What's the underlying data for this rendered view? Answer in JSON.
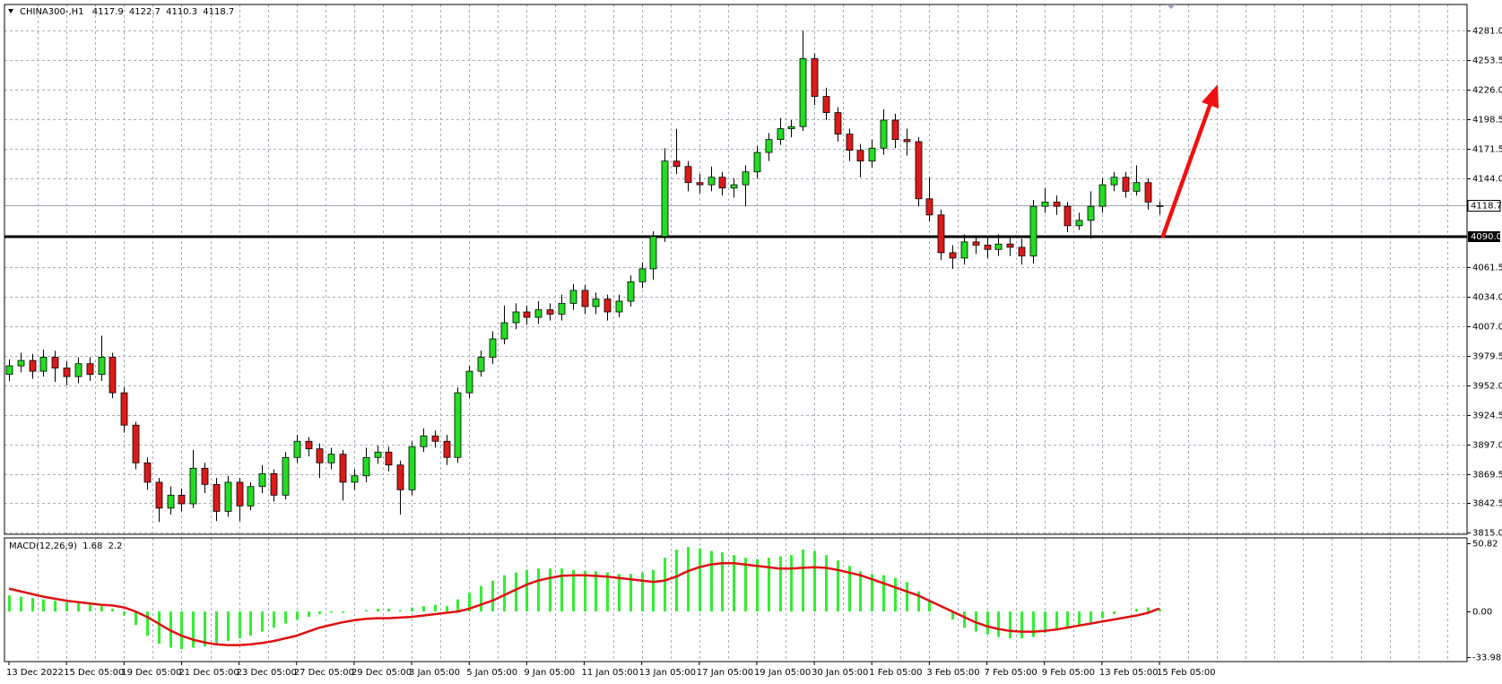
{
  "chart_data": [
    {
      "type": "candlestick",
      "title": "CHINA300-,H1",
      "categories": [
        "13 Dec 2022",
        null,
        null,
        null,
        null,
        "15 Dec 05:00",
        null,
        null,
        null,
        null,
        "19 Dec 05:00",
        null,
        null,
        null,
        null,
        "21 Dec 05:00",
        null,
        null,
        null,
        null,
        "23 Dec 05:00",
        null,
        null,
        null,
        null,
        "27 Dec 05:00",
        null,
        null,
        null,
        null,
        "29 Dec 05:00",
        null,
        null,
        null,
        null,
        "3 Jan 05:00",
        null,
        null,
        null,
        null,
        "5 Jan 05:00",
        null,
        null,
        null,
        null,
        "9 Jan 05:00",
        null,
        null,
        null,
        null,
        "11 Jan 05:00",
        null,
        null,
        null,
        null,
        "13 Jan 05:00",
        null,
        null,
        null,
        null,
        "17 Jan 05:00",
        null,
        null,
        null,
        null,
        "19 Jan 05:00",
        null,
        null,
        null,
        null,
        "30 Jan 05:00",
        null,
        null,
        null,
        null,
        "1 Feb 05:00",
        null,
        null,
        null,
        null,
        "3 Feb 05:00",
        null,
        null,
        null,
        null,
        "7 Feb 05:00",
        null,
        null,
        null,
        null,
        "9 Feb 05:00",
        null,
        null,
        null,
        null,
        "13 Feb 05:00",
        null,
        null,
        null,
        null,
        "15 Feb 05:00"
      ],
      "open": [
        3962,
        3970,
        3975,
        3965,
        3978,
        3968,
        3960,
        3972,
        3962,
        3978,
        3945,
        3915,
        3880,
        3862,
        3838,
        3850,
        3842,
        3875,
        3860,
        3835,
        3862,
        3840,
        3858,
        3870,
        3850,
        3885,
        3900,
        3893,
        3880,
        3888,
        3862,
        3868,
        3885,
        3890,
        3878,
        3855,
        3895,
        3905,
        3900,
        3885,
        3945,
        3965,
        3978,
        3995,
        4010,
        4020,
        4015,
        4022,
        4018,
        4028,
        4040,
        4025,
        4032,
        4020,
        4030,
        4048,
        4060,
        4090,
        4160,
        4155,
        4140,
        4138,
        4145,
        4135,
        4138,
        4150,
        4168,
        4180,
        4190,
        4192,
        4255,
        4220,
        4205,
        4185,
        4170,
        4160,
        4172,
        4198,
        4180,
        4178,
        4125,
        4110,
        4075,
        4070,
        4085,
        4082,
        4078,
        4083,
        4080,
        4072,
        4118,
        4122,
        4118,
        4100,
        4105,
        4118,
        4138,
        4145,
        4132,
        4140,
        4117.9
      ],
      "high": [
        3976,
        3982,
        3981,
        3985,
        3984,
        3974,
        3978,
        3978,
        3998,
        3982,
        3950,
        3918,
        3885,
        3866,
        3858,
        3856,
        3892,
        3880,
        3866,
        3868,
        3866,
        3862,
        3878,
        3874,
        3890,
        3906,
        3904,
        3898,
        3894,
        3892,
        3874,
        3894,
        3896,
        3895,
        3882,
        3900,
        3912,
        3910,
        3906,
        3950,
        3970,
        3984,
        4002,
        4026,
        4028,
        4026,
        4030,
        4028,
        4036,
        4046,
        4045,
        4038,
        4036,
        4036,
        4054,
        4066,
        4095,
        4172,
        4190,
        4160,
        4148,
        4155,
        4150,
        4144,
        4156,
        4174,
        4186,
        4200,
        4198,
        4281,
        4260,
        4228,
        4210,
        4190,
        4176,
        4180,
        4208,
        4204,
        4190,
        4182,
        4145,
        4115,
        4082,
        4092,
        4090,
        4090,
        4092,
        4090,
        4088,
        4124,
        4135,
        4128,
        4122,
        4112,
        4132,
        4144,
        4150,
        4150,
        4156,
        4144,
        4122.7
      ],
      "low": [
        3956,
        3964,
        3958,
        3960,
        3955,
        3952,
        3954,
        3956,
        3956,
        3940,
        3908,
        3874,
        3855,
        3825,
        3832,
        3835,
        3838,
        3852,
        3826,
        3830,
        3826,
        3836,
        3852,
        3844,
        3846,
        3880,
        3886,
        3866,
        3874,
        3845,
        3855,
        3862,
        3879,
        3872,
        3832,
        3850,
        3890,
        3894,
        3878,
        3880,
        3940,
        3960,
        3972,
        3990,
        4004,
        4008,
        4009,
        4012,
        4012,
        4022,
        4018,
        4018,
        4012,
        4015,
        4025,
        4042,
        4050,
        4085,
        4148,
        4132,
        4130,
        4132,
        4128,
        4126,
        4118,
        4144,
        4160,
        4175,
        4182,
        4188,
        4212,
        4198,
        4178,
        4160,
        4145,
        4154,
        4166,
        4172,
        4165,
        4118,
        4104,
        4068,
        4060,
        4064,
        4074,
        4070,
        4072,
        4072,
        4064,
        4065,
        4112,
        4110,
        4094,
        4096,
        4088,
        4112,
        4132,
        4126,
        4128,
        4115,
        4110.3
      ],
      "close": [
        3970,
        3975,
        3965,
        3978,
        3968,
        3960,
        3972,
        3962,
        3978,
        3945,
        3915,
        3880,
        3862,
        3838,
        3850,
        3842,
        3875,
        3860,
        3835,
        3862,
        3840,
        3858,
        3870,
        3850,
        3885,
        3900,
        3893,
        3880,
        3888,
        3862,
        3868,
        3885,
        3890,
        3878,
        3855,
        3895,
        3905,
        3900,
        3885,
        3945,
        3965,
        3978,
        3995,
        4010,
        4020,
        4015,
        4022,
        4018,
        4028,
        4040,
        4025,
        4032,
        4020,
        4030,
        4048,
        4060,
        4090,
        4160,
        4155,
        4140,
        4138,
        4145,
        4135,
        4138,
        4150,
        4168,
        4180,
        4190,
        4192,
        4255,
        4220,
        4205,
        4185,
        4170,
        4160,
        4172,
        4198,
        4180,
        4178,
        4125,
        4110,
        4075,
        4070,
        4085,
        4082,
        4078,
        4083,
        4080,
        4072,
        4118,
        4122,
        4118,
        4100,
        4105,
        4118,
        4138,
        4145,
        4132,
        4140,
        4122,
        4118.7
      ],
      "up_color": "#22dd22",
      "down_color": "#dd1a1a",
      "ylim": [
        3813.7,
        4305.3
      ],
      "yticks": [
        {
          "value": 4281,
          "label": "4281.0"
        },
        4253.5,
        {
          "value": 4226,
          "label": "4226.0"
        },
        4198.5,
        4171.5,
        {
          "value": 4144,
          "label": "4144.0"
        },
        4061.5,
        {
          "value": 4034,
          "label": "4034.0"
        },
        {
          "value": 4007,
          "label": "4007.0"
        },
        3979.5,
        {
          "value": 3952,
          "label": "3952.0"
        },
        3924.5,
        {
          "value": 3897,
          "label": "3897.0"
        },
        3869.5,
        3842.5,
        {
          "value": 3815,
          "label": "3815.0"
        }
      ],
      "grid": true,
      "current_price": 4118.7,
      "hline": {
        "value": 4090,
        "label": "4090.0"
      }
    },
    {
      "type": "macd",
      "title": "MACD(12,26,9)",
      "values": [
        12,
        11,
        10,
        9,
        8,
        7,
        6,
        5,
        4,
        2,
        -3,
        -10,
        -18,
        -24,
        -27,
        -28,
        -27,
        -26,
        -24,
        -22,
        -20,
        -18,
        -15,
        -12,
        -9,
        -6,
        -4,
        -2,
        -1,
        -1,
        0,
        1,
        2,
        2,
        1,
        3,
        4,
        5,
        4,
        9,
        14,
        19,
        23,
        27,
        29,
        31,
        32,
        32,
        32,
        31,
        30,
        30,
        29,
        28,
        28,
        29,
        31,
        40,
        46,
        48,
        47,
        45,
        44,
        42,
        40,
        39,
        40,
        41,
        42,
        46,
        45,
        42,
        38,
        34,
        30,
        28,
        27,
        25,
        22,
        15,
        8,
        0,
        -6,
        -12,
        -15,
        -17,
        -19,
        -20,
        -20,
        -19,
        -16,
        -14,
        -13,
        -11,
        -8,
        -5,
        -2,
        0,
        2,
        3,
        1.68
      ],
      "signal": [
        17,
        15,
        13,
        11,
        9.5,
        8,
        7,
        6,
        5,
        4.5,
        3,
        0,
        -4,
        -9,
        -14,
        -18,
        -21,
        -23,
        -24.5,
        -25,
        -25,
        -24.5,
        -23.5,
        -22,
        -20,
        -18,
        -15,
        -12,
        -10,
        -8,
        -6.5,
        -5.5,
        -5,
        -5,
        -4.5,
        -4,
        -3,
        -2,
        -1,
        0,
        2,
        5,
        8,
        12,
        16,
        20,
        23,
        25,
        26.5,
        27,
        27,
        26.5,
        26,
        25,
        24,
        23,
        22,
        23,
        26,
        30,
        33,
        35,
        36,
        36,
        35,
        34,
        33,
        32,
        32,
        32.5,
        33,
        32.5,
        31,
        29,
        27,
        24,
        21,
        18,
        15,
        12,
        8,
        4,
        0,
        -4,
        -8,
        -11,
        -13,
        -14.5,
        -15,
        -15,
        -14.5,
        -13.5,
        -12,
        -10.5,
        -9,
        -7.5,
        -6,
        -4.5,
        -3,
        -1,
        2.2
      ],
      "color": "#33ee33",
      "signal_color": "#e01010",
      "y2lim": [
        -37.3,
        54.8
      ],
      "y2ticks": [
        50.82,
        {
          "value": 0,
          "label": "0.00"
        },
        -33.98
      ]
    }
  ]
}
